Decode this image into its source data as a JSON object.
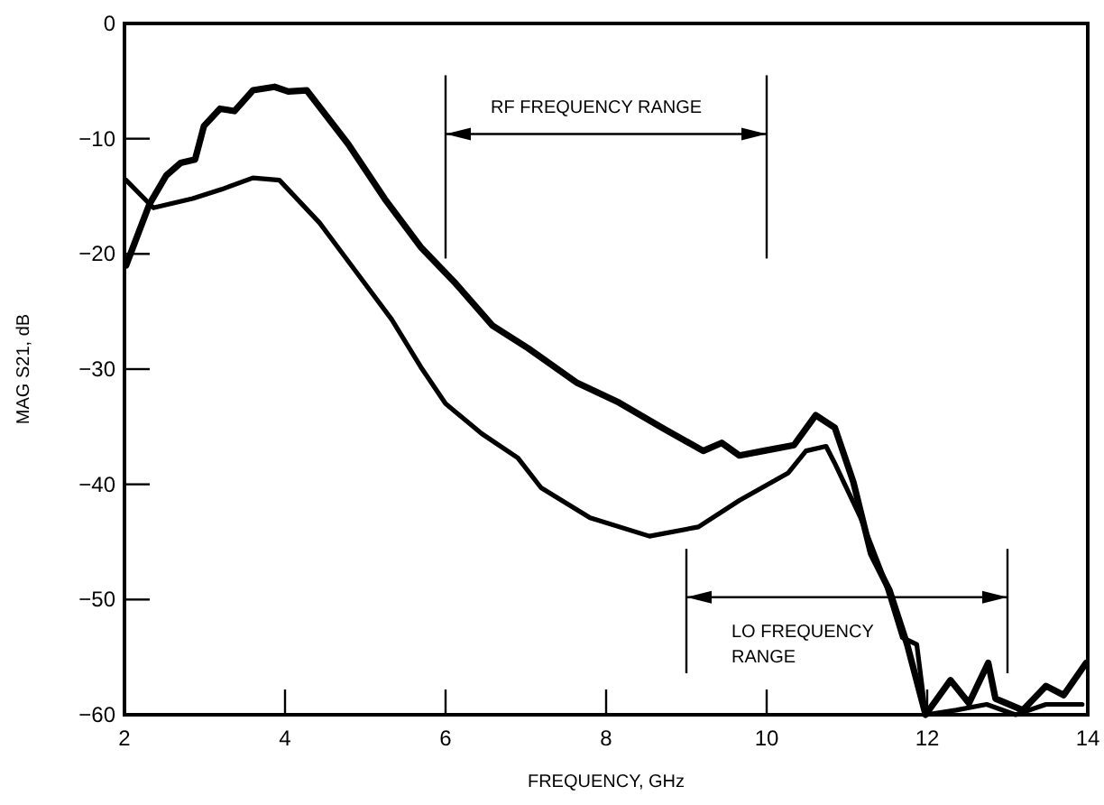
{
  "chart_data": {
    "type": "line",
    "xlabel": "FREQUENCY, GHz",
    "ylabel": "MAG S21, dB",
    "xlim": [
      2,
      14
    ],
    "ylim": [
      -60,
      0
    ],
    "xticks": [
      2,
      4,
      6,
      8,
      10,
      12,
      14
    ],
    "yticks": [
      -60,
      -50,
      -40,
      -30,
      -20,
      -10,
      0
    ],
    "grid": false,
    "line_style": "solid",
    "ref_lines": [
      {
        "axis": "x",
        "value": 6
      },
      {
        "axis": "x",
        "value": 10
      },
      {
        "axis": "x",
        "value": 9
      },
      {
        "axis": "x",
        "value": 13
      }
    ],
    "annotations": [
      "RF FREQUENCY RANGE",
      "LO FREQUENCY RANGE"
    ],
    "series": [
      {
        "color": "#000000",
        "x": [
          2.02,
          2.31,
          2.52,
          2.7,
          2.88,
          2.99,
          3.19,
          3.37,
          3.6,
          3.87,
          4.04,
          4.27,
          4.79,
          5.24,
          5.69,
          6.13,
          6.58,
          7.03,
          7.64,
          8.16,
          8.7,
          9.21,
          9.44,
          9.66,
          9.96,
          10.34,
          10.61,
          10.85,
          11.08,
          11.3,
          11.53,
          11.75,
          11.98,
          12.29,
          12.52,
          12.76,
          12.85,
          13.19,
          13.48,
          13.7,
          13.98
        ],
        "values": [
          -21,
          -15.7,
          -13.2,
          -12.1,
          -11.8,
          -8.9,
          -7.4,
          -7.6,
          -5.8,
          -5.5,
          -5.9,
          -5.8,
          -10.5,
          -15.2,
          -19.4,
          -22.6,
          -26.2,
          -28.2,
          -31.2,
          -32.9,
          -35.1,
          -37.1,
          -36.4,
          -37.5,
          -37.1,
          -36.6,
          -34,
          -35.1,
          -39.8,
          -46,
          -49.2,
          -53.9,
          -60,
          -57,
          -59,
          -55.5,
          -58.6,
          -59.6,
          -57.5,
          -58.3,
          -55.5
        ]
      },
      {
        "color": "#000000",
        "x": [
          2.02,
          2.36,
          2.85,
          3.21,
          3.6,
          3.93,
          4.43,
          4.88,
          5.33,
          5.69,
          6.0,
          6.45,
          6.9,
          7.19,
          7.8,
          8.54,
          9.15,
          9.66,
          10.27,
          10.49,
          10.74,
          10.85,
          11.17,
          11.46,
          11.69,
          11.87,
          11.98,
          12.36,
          12.74,
          13.1,
          13.48,
          13.93
        ],
        "values": [
          -13.6,
          -16,
          -15.2,
          -14.4,
          -13.4,
          -13.6,
          -17.3,
          -21.5,
          -25.7,
          -29.8,
          -33,
          -35.6,
          -37.7,
          -40.3,
          -42.9,
          -44.5,
          -43.7,
          -41.4,
          -39,
          -37.1,
          -36.7,
          -38.2,
          -42.9,
          -48.1,
          -53.3,
          -53.9,
          -60,
          -59.6,
          -59.1,
          -60,
          -59.1,
          -59.1
        ]
      }
    ]
  }
}
